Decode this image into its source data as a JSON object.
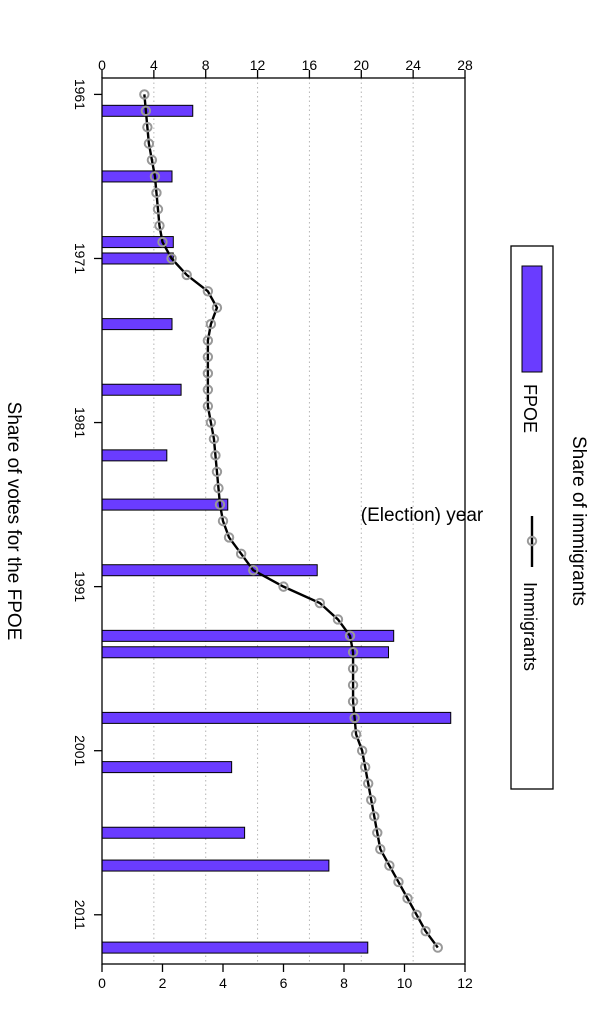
{
  "chart_data": {
    "type": "bar",
    "xlabel": "(Election) year",
    "x_ticks": [
      1961,
      1971,
      1981,
      1991,
      2001,
      2011
    ],
    "xlim": [
      1960,
      2014
    ],
    "grid": true,
    "legend_position": "right",
    "y_left": {
      "label": "Share of votes for the FPOE",
      "ticks": [
        0,
        4,
        8,
        12,
        16,
        20,
        24,
        28
      ],
      "range": [
        0,
        28
      ]
    },
    "y_right": {
      "label": "Share of immigrants",
      "ticks": [
        0,
        2,
        4,
        6,
        8,
        10,
        12
      ],
      "range": [
        0,
        12
      ]
    },
    "series": [
      {
        "name": "FPOE",
        "type": "bar",
        "axis": "left",
        "color": "#6a3cff",
        "x": [
          1962,
          1966,
          1970,
          1971,
          1975,
          1979,
          1983,
          1986,
          1990,
          1994,
          1995,
          1999,
          2002,
          2006,
          2008,
          2013
        ],
        "values": [
          7.0,
          5.4,
          5.5,
          5.5,
          5.4,
          6.1,
          5.0,
          9.7,
          16.6,
          22.5,
          22.1,
          26.9,
          10.0,
          11.0,
          17.5,
          20.5
        ]
      },
      {
        "name": "Immigrants",
        "type": "line",
        "axis": "right",
        "color": "#000000",
        "marker_color": "#999999",
        "x": [
          1961,
          1962,
          1963,
          1964,
          1965,
          1966,
          1967,
          1968,
          1969,
          1970,
          1971,
          1972,
          1973,
          1974,
          1975,
          1976,
          1977,
          1978,
          1979,
          1980,
          1981,
          1982,
          1983,
          1984,
          1985,
          1986,
          1987,
          1988,
          1989,
          1990,
          1991,
          1992,
          1993,
          1994,
          1995,
          1996,
          1997,
          1998,
          1999,
          2000,
          2001,
          2002,
          2003,
          2004,
          2005,
          2006,
          2007,
          2008,
          2009,
          2010,
          2011,
          2012,
          2013
        ],
        "values": [
          1.4,
          1.45,
          1.5,
          1.55,
          1.65,
          1.75,
          1.8,
          1.85,
          1.9,
          2.0,
          2.3,
          2.8,
          3.5,
          3.8,
          3.6,
          3.5,
          3.5,
          3.5,
          3.5,
          3.5,
          3.6,
          3.7,
          3.75,
          3.8,
          3.85,
          3.9,
          4.0,
          4.2,
          4.6,
          5.0,
          6.0,
          7.2,
          7.8,
          8.2,
          8.3,
          8.3,
          8.3,
          8.3,
          8.35,
          8.4,
          8.6,
          8.7,
          8.8,
          8.9,
          9.0,
          9.1,
          9.2,
          9.5,
          9.8,
          10.1,
          10.4,
          10.7,
          11.1
        ]
      }
    ]
  }
}
